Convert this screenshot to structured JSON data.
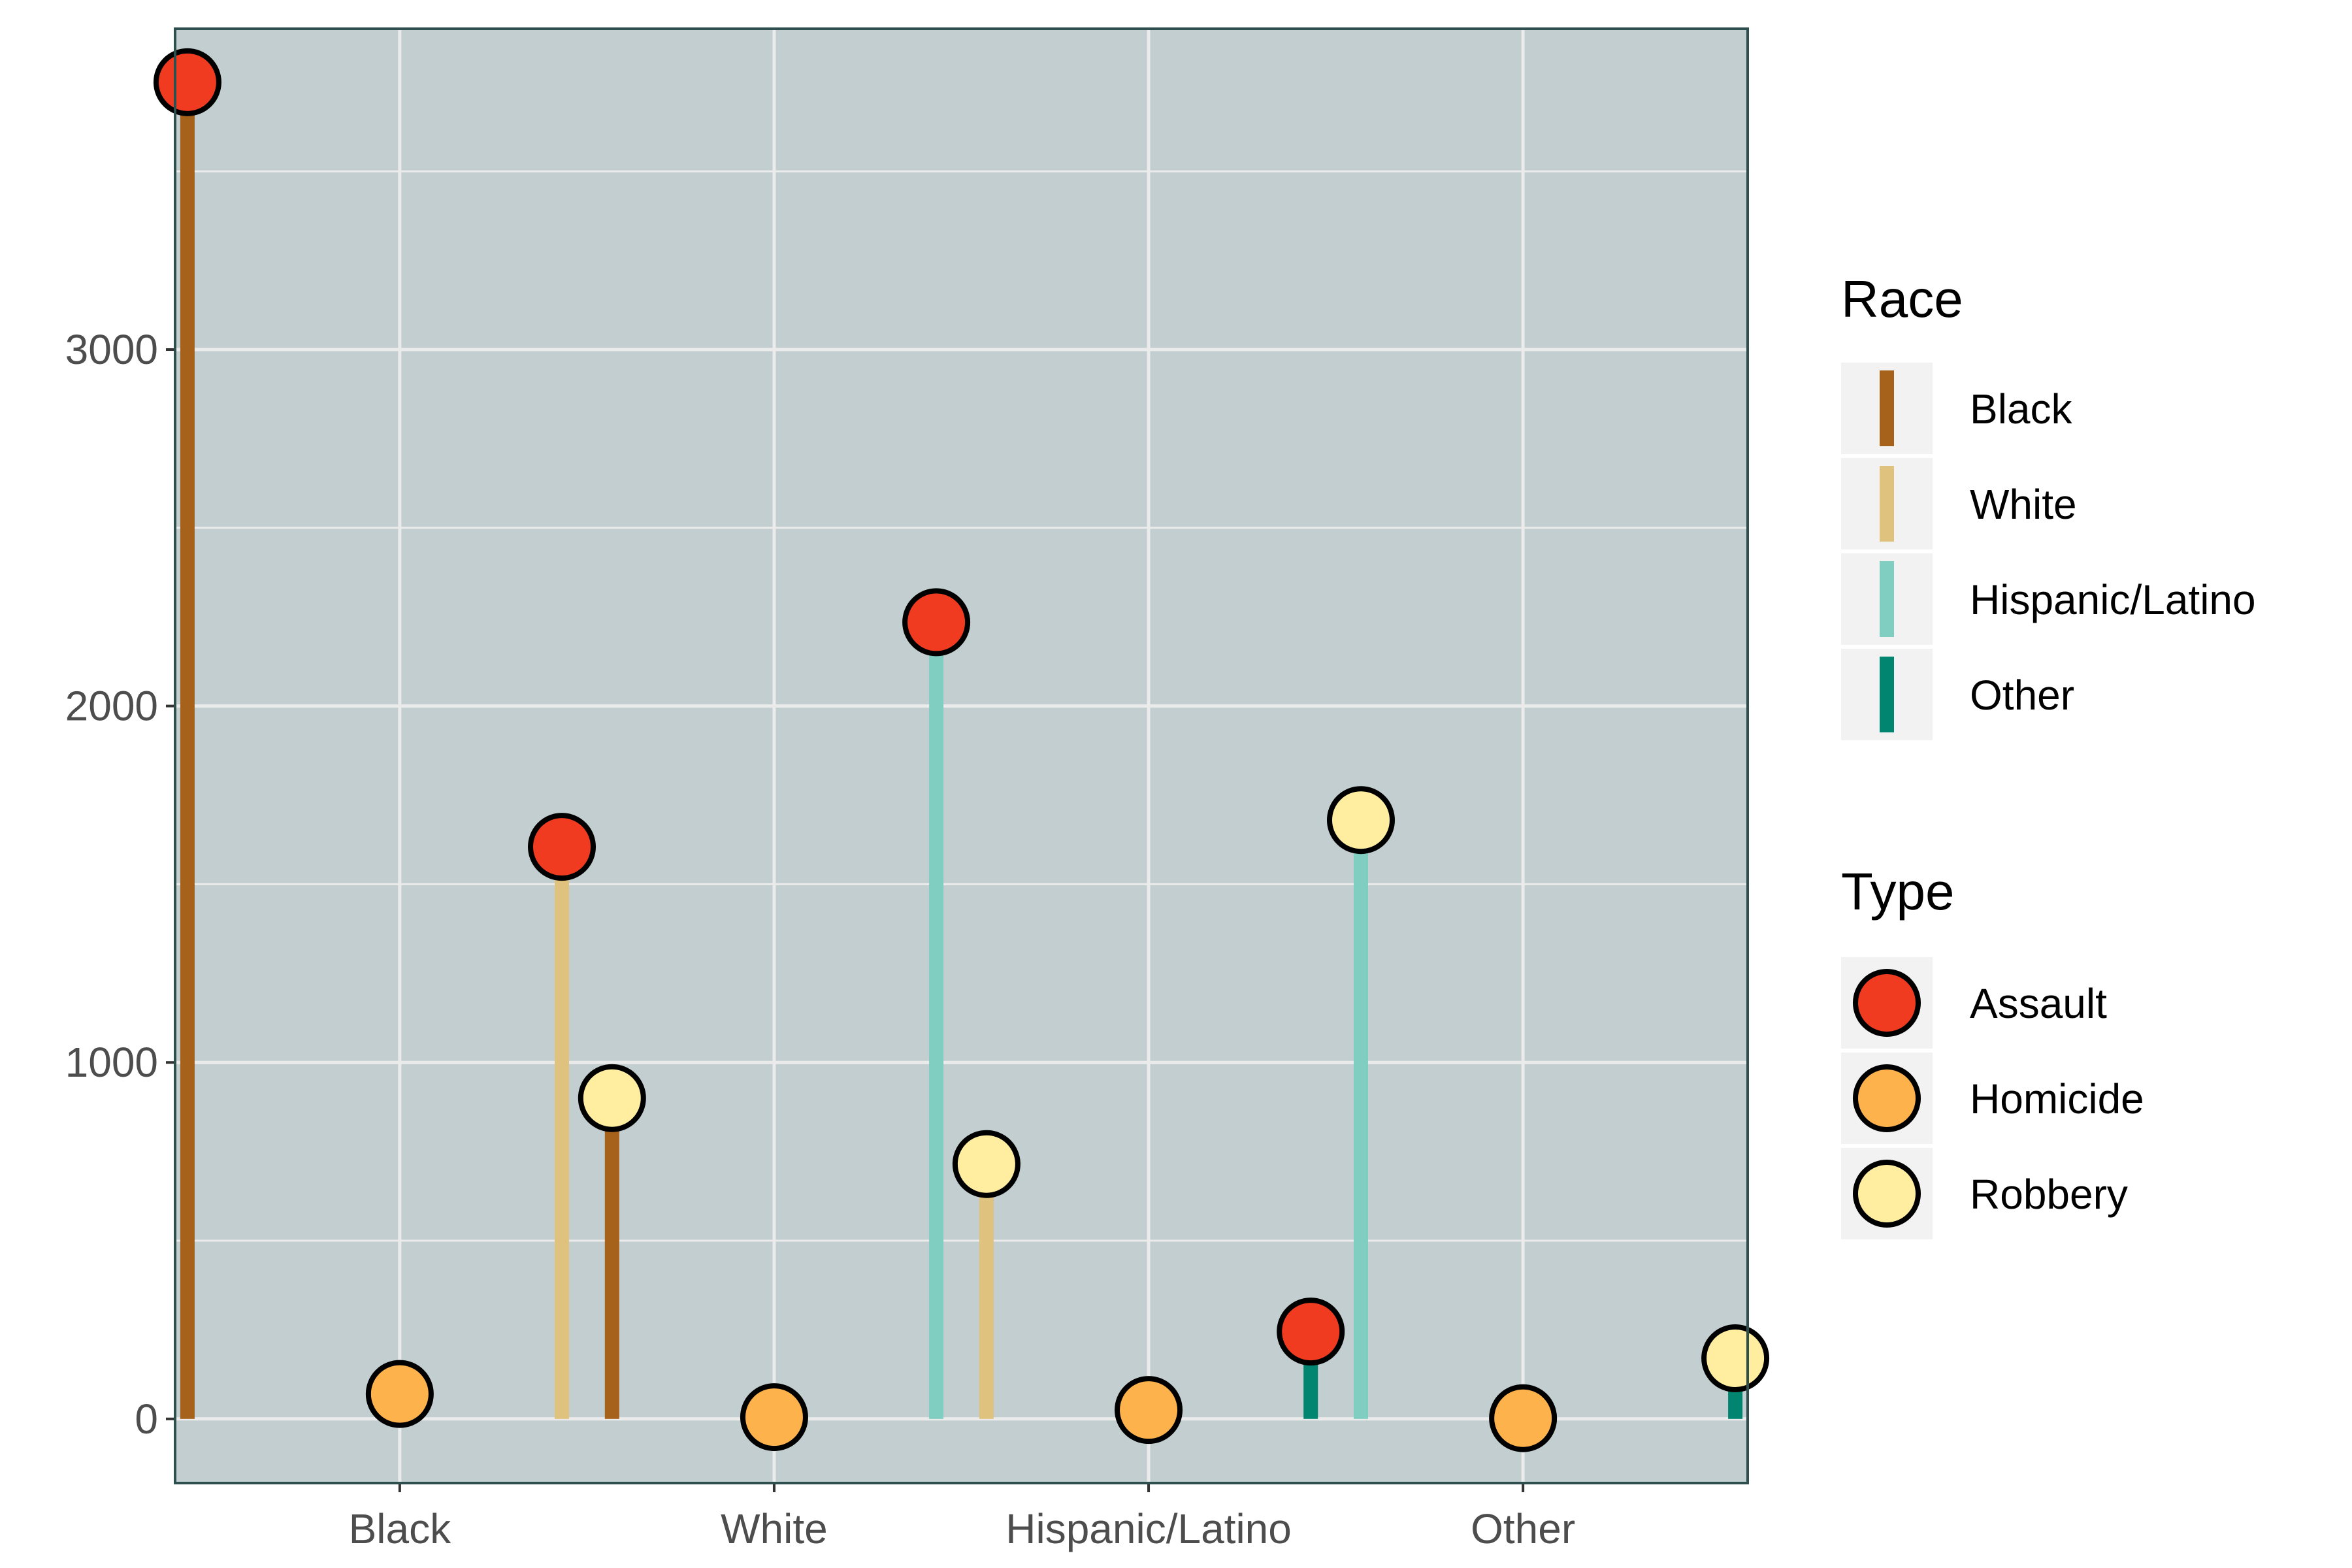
{
  "chart_data": {
    "type": "lollipop",
    "title": "",
    "xlabel": "",
    "ylabel": "",
    "categories": [
      "Black",
      "White",
      "Hispanic/Latino",
      "Other"
    ],
    "types": [
      "Assault",
      "Homicide",
      "Robbery"
    ],
    "ylim": [
      -180,
      3900
    ],
    "yticks": [
      0,
      1000,
      2000,
      3000
    ],
    "ytick_labels": [
      "0",
      "1000",
      "2000",
      "3000"
    ],
    "grid": true,
    "panel_background": "#c2cecf",
    "series": [
      {
        "name": "Assault",
        "values": [
          3750,
          1605,
          2235,
          245
        ]
      },
      {
        "name": "Homicide",
        "values": [
          70,
          5,
          25,
          2
        ]
      },
      {
        "name": "Robbery",
        "values": [
          900,
          715,
          1680,
          170
        ]
      }
    ],
    "race_colors": [
      "#a6611a",
      "#dfc27d",
      "#80cdc1",
      "#018571"
    ],
    "type_colors": [
      "#f03b20",
      "#feb24c",
      "#ffeda0"
    ],
    "legends": [
      {
        "title": "Race",
        "position": "right",
        "entries": [
          "Black",
          "White",
          "Hispanic/Latino",
          "Other"
        ]
      },
      {
        "title": "Type",
        "position": "right",
        "entries": [
          "Assault",
          "Homicide",
          "Robbery"
        ]
      }
    ]
  }
}
